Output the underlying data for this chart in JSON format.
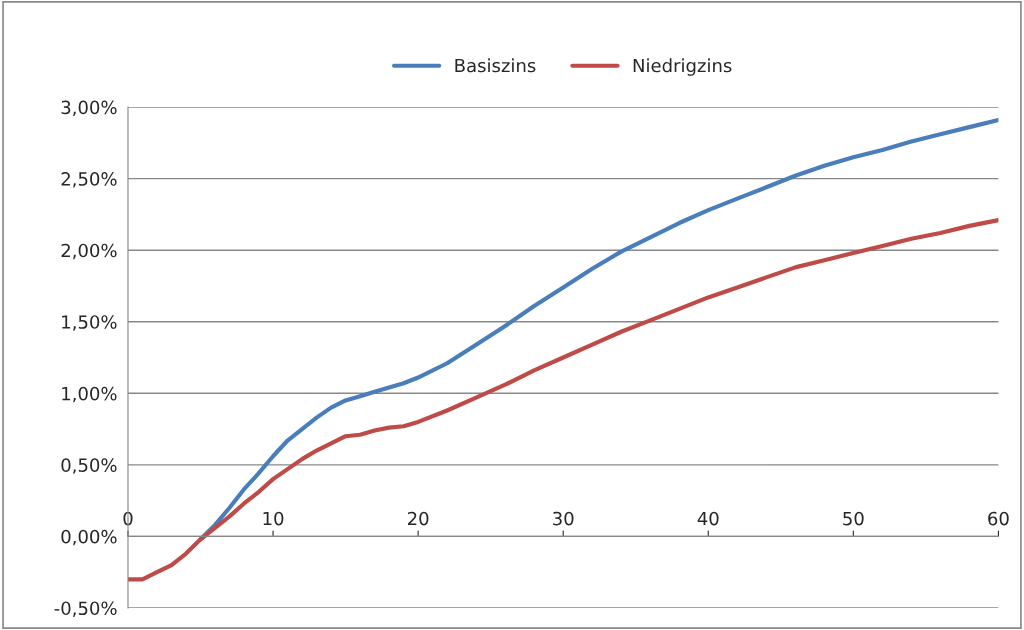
{
  "chart_data": {
    "type": "line",
    "x": [
      0,
      1,
      2,
      3,
      4,
      5,
      6,
      7,
      8,
      9,
      10,
      11,
      12,
      13,
      14,
      15,
      16,
      17,
      18,
      19,
      20,
      22,
      24,
      26,
      28,
      30,
      32,
      34,
      36,
      38,
      40,
      42,
      44,
      46,
      48,
      50,
      52,
      54,
      56,
      58,
      60
    ],
    "series": [
      {
        "name": "Basiszins",
        "color": "#4a7ebb",
        "values": [
          null,
          null,
          null,
          null,
          null,
          -0.02,
          0.08,
          0.2,
          0.33,
          0.44,
          0.56,
          0.67,
          0.75,
          0.83,
          0.9,
          0.95,
          0.98,
          1.01,
          1.04,
          1.07,
          1.11,
          1.21,
          1.34,
          1.47,
          1.61,
          1.74,
          1.87,
          1.99,
          2.09,
          2.19,
          2.28,
          2.36,
          2.44,
          2.52,
          2.59,
          2.65,
          2.7,
          2.76,
          2.81,
          2.86,
          2.91
        ]
      },
      {
        "name": "Niedrigzins",
        "color": "#be4b48",
        "values": [
          -0.3,
          -0.3,
          -0.25,
          -0.2,
          -0.12,
          -0.02,
          0.06,
          0.14,
          0.23,
          0.31,
          0.4,
          0.47,
          0.54,
          0.6,
          0.65,
          0.7,
          0.71,
          0.74,
          0.76,
          0.77,
          0.8,
          0.88,
          0.97,
          1.06,
          1.16,
          1.25,
          1.34,
          1.43,
          1.51,
          1.59,
          1.67,
          1.74,
          1.81,
          1.88,
          1.93,
          1.98,
          2.03,
          2.08,
          2.12,
          2.17,
          2.21
        ]
      }
    ],
    "xlim": [
      0,
      60
    ],
    "xticks": [
      0,
      10,
      20,
      30,
      40,
      50,
      60
    ],
    "ylim": [
      -0.5,
      3.0
    ],
    "yticks": [
      {
        "value": -0.5,
        "label": "-0,50%"
      },
      {
        "value": 0.0,
        "label": "0,00%"
      },
      {
        "value": 0.5,
        "label": "0,50%"
      },
      {
        "value": 1.0,
        "label": "1,00%"
      },
      {
        "value": 1.5,
        "label": "1,50%"
      },
      {
        "value": 2.0,
        "label": "2,00%"
      },
      {
        "value": 2.5,
        "label": "2,50%"
      },
      {
        "value": 3.0,
        "label": "3,00%"
      }
    ],
    "grid": "y",
    "legend": "top",
    "marker": "none",
    "line_style": "solid"
  }
}
